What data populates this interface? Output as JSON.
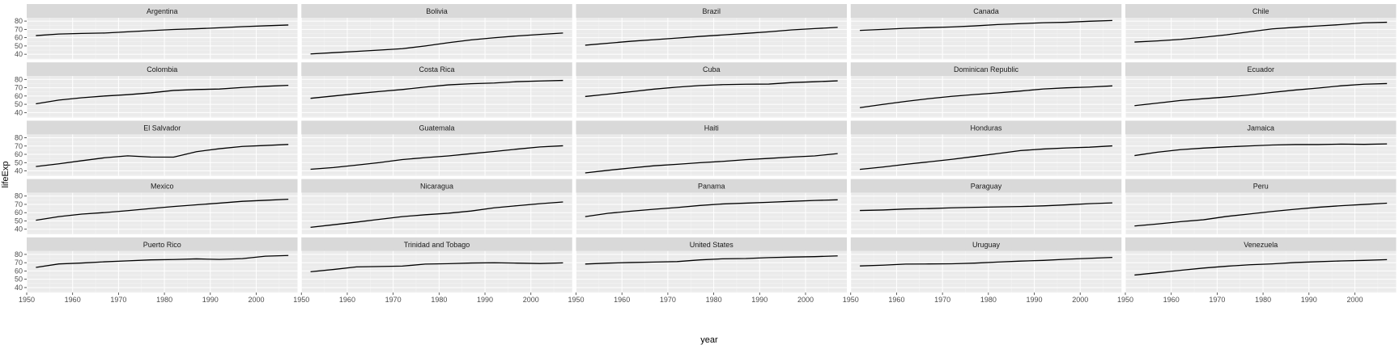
{
  "chart_data": {
    "type": "line",
    "facet": "country",
    "xlabel": "year",
    "ylabel": "lifeExp",
    "xlim": [
      1950,
      2009
    ],
    "ylim": [
      34,
      84
    ],
    "x_ticks": [
      1950,
      1960,
      1970,
      1980,
      1990,
      2000
    ],
    "y_ticks": [
      40,
      50,
      60,
      70,
      80
    ],
    "grid": true,
    "ncol": 5,
    "nrow": 5,
    "x": [
      1952,
      1957,
      1962,
      1967,
      1972,
      1977,
      1982,
      1987,
      1992,
      1997,
      2002,
      2007
    ],
    "series": [
      {
        "name": "Argentina",
        "values": [
          62.5,
          64.4,
          65.1,
          65.6,
          67.1,
          68.5,
          69.9,
          70.8,
          71.9,
          73.3,
          74.3,
          75.3
        ]
      },
      {
        "name": "Bolivia",
        "values": [
          40.4,
          41.9,
          43.4,
          45.0,
          46.7,
          50.0,
          53.9,
          57.3,
          59.9,
          62.1,
          63.9,
          65.6
        ]
      },
      {
        "name": "Brazil",
        "values": [
          50.9,
          53.3,
          55.7,
          57.6,
          59.5,
          61.5,
          63.3,
          65.2,
          67.1,
          69.4,
          71.0,
          72.4
        ]
      },
      {
        "name": "Canada",
        "values": [
          68.8,
          70.0,
          71.3,
          72.1,
          72.9,
          74.2,
          75.8,
          76.9,
          78.0,
          78.6,
          79.8,
          80.7
        ]
      },
      {
        "name": "Chile",
        "values": [
          54.7,
          56.1,
          57.9,
          60.5,
          63.4,
          67.1,
          70.6,
          72.5,
          74.1,
          75.8,
          77.9,
          78.6
        ]
      },
      {
        "name": "Colombia",
        "values": [
          50.6,
          55.1,
          57.9,
          60.0,
          61.6,
          63.8,
          66.7,
          67.8,
          68.4,
          70.3,
          71.7,
          72.9
        ]
      },
      {
        "name": "Costa Rica",
        "values": [
          57.2,
          60.0,
          62.8,
          65.4,
          67.8,
          70.8,
          73.4,
          74.8,
          75.7,
          77.3,
          78.1,
          78.8
        ]
      },
      {
        "name": "Cuba",
        "values": [
          59.4,
          62.3,
          65.2,
          68.3,
          70.7,
          72.6,
          73.7,
          74.2,
          74.4,
          76.2,
          77.2,
          78.3
        ]
      },
      {
        "name": "Dominican Republic",
        "values": [
          45.9,
          49.8,
          53.5,
          56.8,
          59.6,
          61.8,
          63.7,
          66.0,
          68.5,
          69.9,
          70.8,
          72.2
        ]
      },
      {
        "name": "Ecuador",
        "values": [
          48.4,
          51.4,
          54.6,
          56.7,
          58.8,
          61.3,
          64.3,
          67.2,
          69.6,
          72.3,
          74.2,
          75.0
        ]
      },
      {
        "name": "El Salvador",
        "values": [
          45.3,
          48.6,
          52.3,
          55.9,
          58.2,
          56.7,
          56.6,
          63.2,
          66.8,
          69.5,
          70.7,
          71.9
        ]
      },
      {
        "name": "Guatemala",
        "values": [
          42.0,
          44.1,
          47.0,
          50.0,
          53.7,
          56.0,
          58.1,
          60.8,
          63.4,
          66.3,
          68.9,
          70.3
        ]
      },
      {
        "name": "Haiti",
        "values": [
          37.6,
          40.7,
          43.6,
          46.2,
          48.0,
          49.9,
          51.5,
          53.6,
          55.1,
          56.7,
          58.1,
          60.9
        ]
      },
      {
        "name": "Honduras",
        "values": [
          41.9,
          44.7,
          48.0,
          50.9,
          53.9,
          57.4,
          60.9,
          64.5,
          66.4,
          67.7,
          68.6,
          70.2
        ]
      },
      {
        "name": "Jamaica",
        "values": [
          58.5,
          62.6,
          65.6,
          67.5,
          69.0,
          70.1,
          71.2,
          71.8,
          71.8,
          72.3,
          72.0,
          72.6
        ]
      },
      {
        "name": "Mexico",
        "values": [
          50.8,
          55.2,
          58.3,
          60.1,
          62.4,
          65.0,
          67.4,
          69.5,
          71.5,
          73.7,
          74.9,
          76.2
        ]
      },
      {
        "name": "Nicaragua",
        "values": [
          42.3,
          45.4,
          48.6,
          51.9,
          55.2,
          57.5,
          59.3,
          62.0,
          65.8,
          68.4,
          70.8,
          72.9
        ]
      },
      {
        "name": "Panama",
        "values": [
          55.2,
          59.2,
          61.8,
          64.1,
          66.2,
          68.7,
          70.5,
          71.5,
          72.5,
          73.7,
          74.7,
          75.5
        ]
      },
      {
        "name": "Paraguay",
        "values": [
          62.6,
          63.2,
          64.4,
          64.9,
          65.8,
          66.4,
          66.9,
          67.4,
          68.2,
          69.4,
          70.8,
          71.8
        ]
      },
      {
        "name": "Peru",
        "values": [
          43.9,
          46.3,
          49.1,
          51.4,
          55.4,
          58.4,
          61.4,
          64.1,
          66.5,
          68.4,
          69.9,
          71.4
        ]
      },
      {
        "name": "Puerto Rico",
        "values": [
          64.3,
          68.5,
          69.6,
          71.1,
          72.2,
          73.4,
          73.8,
          74.6,
          73.9,
          74.9,
          77.8,
          78.7
        ]
      },
      {
        "name": "Trinidad and Tobago",
        "values": [
          59.1,
          61.8,
          64.9,
          65.4,
          65.9,
          68.3,
          68.8,
          69.6,
          69.9,
          69.5,
          68.98,
          69.8
        ]
      },
      {
        "name": "United States",
        "values": [
          68.4,
          69.5,
          70.2,
          70.8,
          71.3,
          73.4,
          74.7,
          75.0,
          76.1,
          76.8,
          77.3,
          78.2
        ]
      },
      {
        "name": "Uruguay",
        "values": [
          66.1,
          67.0,
          68.3,
          68.5,
          68.7,
          69.5,
          70.8,
          71.9,
          72.8,
          74.2,
          75.3,
          76.4
        ]
      },
      {
        "name": "Venezuela",
        "values": [
          55.1,
          57.9,
          60.8,
          63.5,
          65.7,
          67.5,
          68.6,
          70.2,
          71.2,
          72.1,
          72.8,
          73.7
        ]
      }
    ]
  }
}
